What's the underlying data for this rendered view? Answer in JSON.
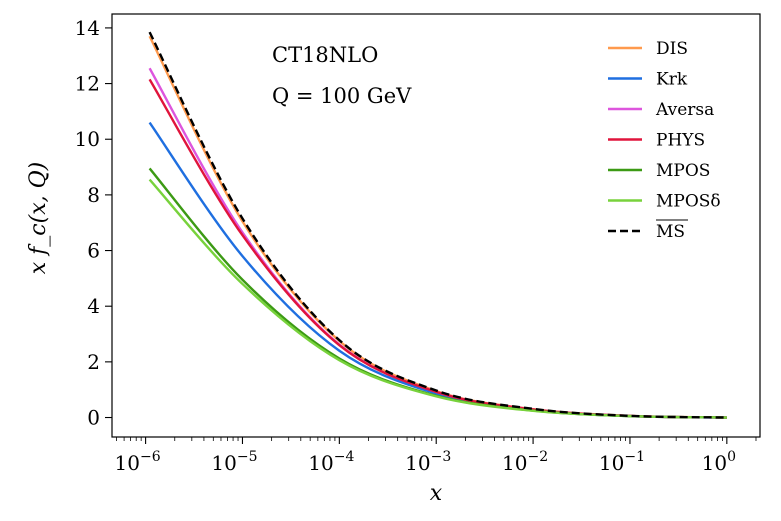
{
  "chart_data": {
    "type": "line",
    "xscale": "log",
    "annotations": {
      "line1": "CT18NLO",
      "line2": "Q = 100 GeV"
    },
    "xlabel": "x",
    "ylabel": "x f_c(x, Q)",
    "xlim": [
      4.5e-07,
      2.2
    ],
    "ylim": [
      -0.7,
      14.5
    ],
    "x_ticks": [
      {
        "base": "10",
        "exp": "−6",
        "value": 1e-06
      },
      {
        "base": "10",
        "exp": "−5",
        "value": 1e-05
      },
      {
        "base": "10",
        "exp": "−4",
        "value": 0.0001
      },
      {
        "base": "10",
        "exp": "−3",
        "value": 0.001
      },
      {
        "base": "10",
        "exp": "−2",
        "value": 0.01
      },
      {
        "base": "10",
        "exp": "−1",
        "value": 0.1
      },
      {
        "base": "10",
        "exp": "0",
        "value": 1
      }
    ],
    "y_ticks": [
      0,
      2,
      4,
      6,
      8,
      10,
      12,
      14
    ],
    "legend_position": "top-right",
    "x": [
      1.1e-06,
      1e-05,
      0.0001,
      0.001,
      0.01,
      0.1,
      1
    ],
    "series": [
      {
        "name": "DIS",
        "color": "#ff9a4d",
        "dash": false,
        "values": [
          13.7,
          7.05,
          2.75,
          0.95,
          0.3,
          0.06,
          0
        ]
      },
      {
        "name": "Krk",
        "color": "#1f6fe0",
        "dash": false,
        "values": [
          10.6,
          5.8,
          2.4,
          0.86,
          0.27,
          0.05,
          0
        ]
      },
      {
        "name": "Aversa",
        "color": "#dd55dd",
        "dash": false,
        "values": [
          12.55,
          6.65,
          2.62,
          0.92,
          0.29,
          0.055,
          0
        ]
      },
      {
        "name": "PHYS",
        "color": "#e0143c",
        "dash": false,
        "values": [
          12.15,
          6.55,
          2.6,
          0.92,
          0.29,
          0.055,
          0
        ]
      },
      {
        "name": "MPOS",
        "color": "#3c9a14",
        "dash": false,
        "values": [
          8.95,
          4.95,
          2.12,
          0.78,
          0.25,
          0.05,
          0
        ]
      },
      {
        "name": "MPOSδ",
        "color": "#78d23c",
        "dash": false,
        "values": [
          8.55,
          4.8,
          2.06,
          0.76,
          0.24,
          0.05,
          0
        ]
      },
      {
        "name": "MS",
        "color": "#000000",
        "dash": true,
        "overline": true,
        "values": [
          13.85,
          7.15,
          2.78,
          0.97,
          0.31,
          0.06,
          0
        ]
      }
    ]
  }
}
